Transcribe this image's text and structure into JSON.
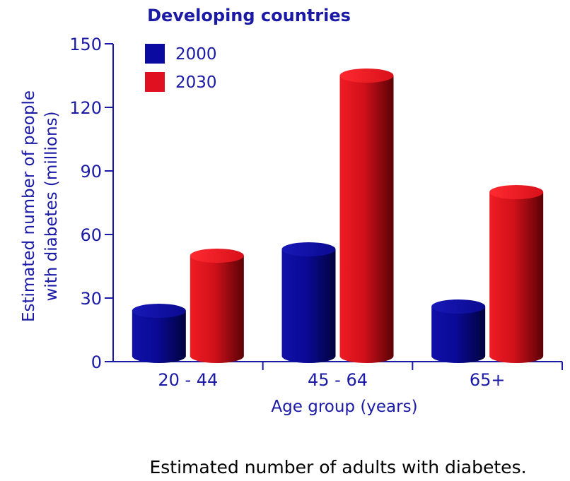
{
  "chart_data": {
    "type": "bar",
    "title": "Developing countries",
    "xlabel": "Age group (years)",
    "ylabel_line1": "Estimated number of people",
    "ylabel_line2": "with diabetes (millions)",
    "categories": [
      "20 - 44",
      "45 - 64",
      "65+"
    ],
    "series": [
      {
        "name": "2000",
        "values": [
          24,
          53,
          26
        ],
        "color": "#0a0aa0"
      },
      {
        "name": "2030",
        "values": [
          50,
          135,
          80
        ],
        "color": "#e01020"
      }
    ],
    "ylim": [
      0,
      150
    ],
    "yticks": [
      "0",
      "30",
      "60",
      "90",
      "120",
      "150"
    ],
    "legend_position": "top-left",
    "grid": false
  },
  "caption": "Estimated number of adults with diabetes."
}
